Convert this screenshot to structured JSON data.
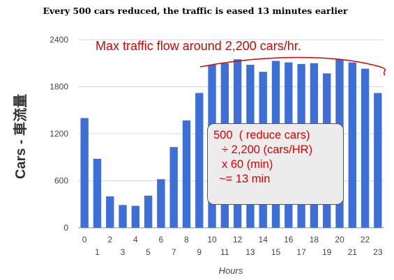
{
  "title": "Every 500 cars reduced, the traffic is eased 13 minutes earlier",
  "annotation_top": "Max traffic flow around 2,200 cars/hr.",
  "calc_box": {
    "line1": "500  ( reduce cars)",
    "line2": "÷ 2,200 (cars/HR)",
    "line3": "x 60 (min)",
    "line4": "~= 13 min"
  },
  "colors": {
    "bar": "#3d6fd6",
    "annotation": "#e00000",
    "grid": "#d9d9d9"
  },
  "chart_data": {
    "type": "bar",
    "title": "Every 500 cars reduced, the traffic is eased 13 minutes earlier",
    "xlabel": "Hours",
    "ylabel": "Cars - 車流量",
    "ylim": [
      0,
      2400
    ],
    "yticks": [
      "0",
      "600",
      "1200",
      "1800",
      "2400"
    ],
    "grid": true,
    "categories": [
      "0",
      "1",
      "2",
      "3",
      "4",
      "5",
      "6",
      "7",
      "8",
      "9",
      "10",
      "11",
      "12",
      "13",
      "14",
      "15",
      "16",
      "17",
      "18",
      "19",
      "20",
      "21",
      "22",
      "23"
    ],
    "values": [
      1400,
      880,
      400,
      290,
      280,
      410,
      620,
      1030,
      1370,
      1720,
      2080,
      2100,
      2150,
      2080,
      1990,
      2130,
      2110,
      2090,
      2100,
      1970,
      2150,
      2110,
      2030,
      1720
    ]
  }
}
